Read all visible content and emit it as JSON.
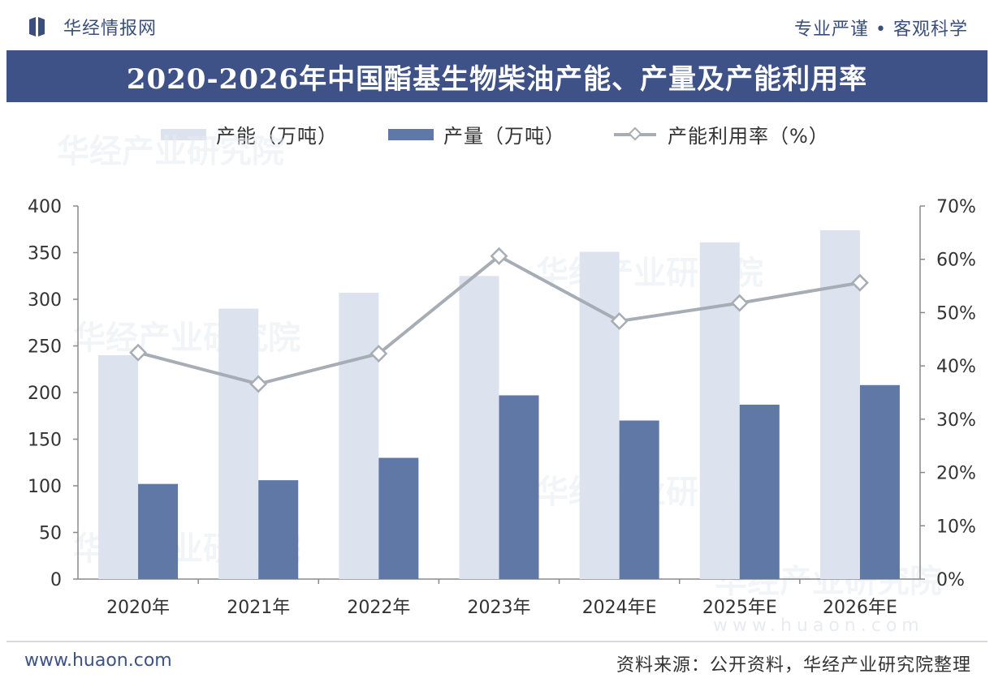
{
  "header": {
    "brand": "华经情报网",
    "slogan": "专业严谨 • 客观科学"
  },
  "title": "2020-2026年中国酯基生物柴油产能、产量及产能利用率",
  "legend": {
    "capacity": "产能（万吨）",
    "output": "产量（万吨）",
    "utilization": "产能利用率（%）"
  },
  "footer": {
    "site": "www.huaon.com",
    "source": "资料来源：公开资料，华经产业研究院整理"
  },
  "watermark": {
    "text": "华经产业研究院",
    "url": "www.huaon.com"
  },
  "colors": {
    "capacity": "#dde3ee",
    "output": "#5f78a6",
    "utilization": "#a7adb5",
    "title_bg": "#3e5287",
    "brand": "#3b4f7c"
  },
  "chart_data": {
    "type": "bar",
    "categories": [
      "2020年",
      "2021年",
      "2022年",
      "2023年",
      "2024年E",
      "2025年E",
      "2026年E"
    ],
    "series": [
      {
        "name": "产能（万吨）",
        "type": "bar",
        "axis": "left",
        "values": [
          240,
          290,
          307,
          325,
          351,
          361,
          374
        ]
      },
      {
        "name": "产量（万吨）",
        "type": "bar",
        "axis": "left",
        "values": [
          102,
          106,
          130,
          197,
          170,
          187,
          208
        ]
      },
      {
        "name": "产能利用率（%）",
        "type": "line",
        "axis": "right",
        "values": [
          42.5,
          36.6,
          42.3,
          60.6,
          48.4,
          51.8,
          55.6
        ]
      }
    ],
    "y_left": {
      "min": 0,
      "max": 400,
      "ticks": [
        "0",
        "50",
        "100",
        "150",
        "200",
        "250",
        "300",
        "350",
        "400"
      ]
    },
    "y_right": {
      "min": 0,
      "max": 70,
      "ticks": [
        "0%",
        "10%",
        "20%",
        "30%",
        "40%",
        "50%",
        "60%",
        "70%"
      ]
    },
    "grid": false,
    "legend_position": "top"
  }
}
